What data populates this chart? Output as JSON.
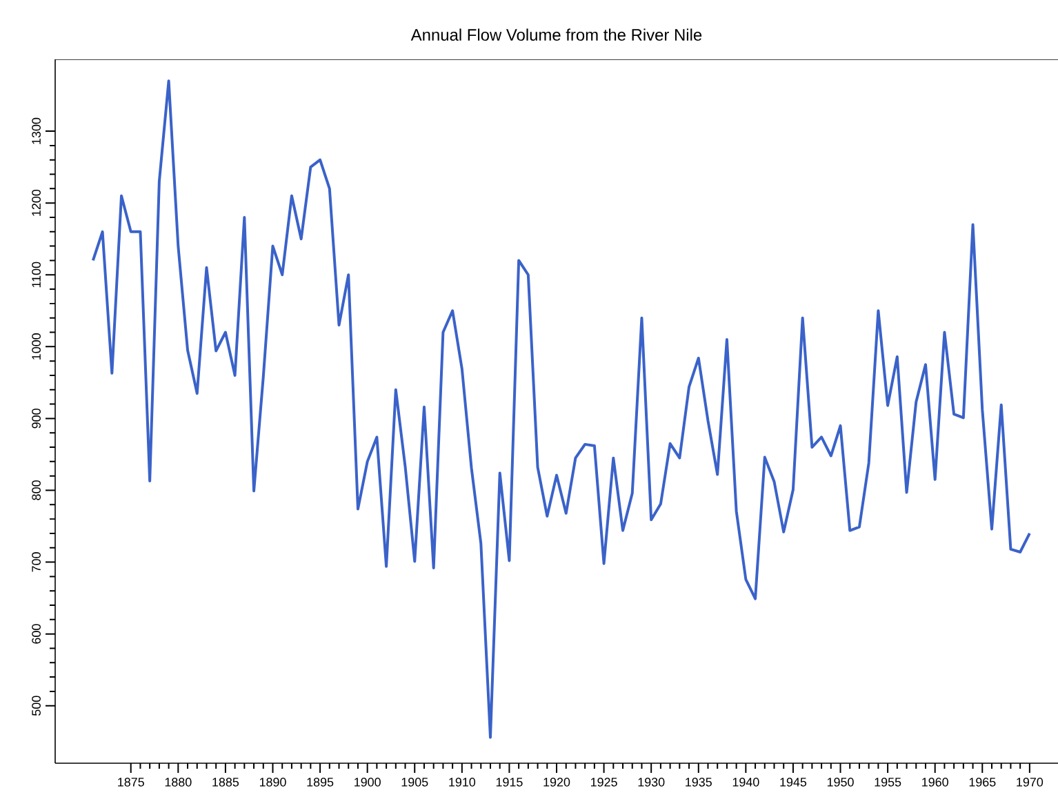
{
  "chart_data": {
    "type": "line",
    "title": "Annual Flow Volume from the River Nile",
    "color": "#3a62c9",
    "x": [
      1871,
      1872,
      1873,
      1874,
      1875,
      1876,
      1877,
      1878,
      1879,
      1880,
      1881,
      1882,
      1883,
      1884,
      1885,
      1886,
      1887,
      1888,
      1889,
      1890,
      1891,
      1892,
      1893,
      1894,
      1895,
      1896,
      1897,
      1898,
      1899,
      1900,
      1901,
      1902,
      1903,
      1904,
      1905,
      1906,
      1907,
      1908,
      1909,
      1910,
      1911,
      1912,
      1913,
      1914,
      1915,
      1916,
      1917,
      1918,
      1919,
      1920,
      1921,
      1922,
      1923,
      1924,
      1925,
      1926,
      1927,
      1928,
      1929,
      1930,
      1931,
      1932,
      1933,
      1934,
      1935,
      1936,
      1937,
      1938,
      1939,
      1940,
      1941,
      1942,
      1943,
      1944,
      1945,
      1946,
      1947,
      1948,
      1949,
      1950,
      1951,
      1952,
      1953,
      1954,
      1955,
      1956,
      1957,
      1958,
      1959,
      1960,
      1961,
      1962,
      1963,
      1964,
      1965,
      1966,
      1967,
      1968,
      1969,
      1970
    ],
    "values": [
      1120,
      1160,
      963,
      1210,
      1160,
      1160,
      813,
      1230,
      1370,
      1140,
      995,
      935,
      1110,
      994,
      1020,
      960,
      1180,
      799,
      958,
      1140,
      1100,
      1210,
      1150,
      1250,
      1260,
      1220,
      1030,
      1100,
      774,
      840,
      874,
      694,
      940,
      833,
      701,
      916,
      692,
      1020,
      1050,
      969,
      831,
      726,
      456,
      824,
      702,
      1120,
      1100,
      832,
      764,
      821,
      768,
      845,
      864,
      862,
      698,
      845,
      744,
      796,
      1040,
      759,
      781,
      865,
      845,
      944,
      984,
      897,
      822,
      1010,
      771,
      676,
      649,
      846,
      812,
      742,
      801,
      1040,
      860,
      874,
      848,
      890,
      744,
      749,
      838,
      1050,
      918,
      986,
      797,
      923,
      975,
      815,
      1020,
      906,
      901,
      1170,
      912,
      746,
      919,
      718,
      714,
      740
    ],
    "xlim": [
      1867,
      1973
    ],
    "ylim": [
      420,
      1400
    ],
    "xticks": [
      1875,
      1880,
      1885,
      1890,
      1895,
      1900,
      1905,
      1910,
      1915,
      1920,
      1925,
      1930,
      1935,
      1940,
      1945,
      1950,
      1955,
      1960,
      1965,
      1970
    ],
    "yticks": [
      500,
      600,
      700,
      800,
      900,
      1000,
      1100,
      1200,
      1300
    ],
    "grid": false,
    "marker": "none",
    "line_style": "solid"
  }
}
